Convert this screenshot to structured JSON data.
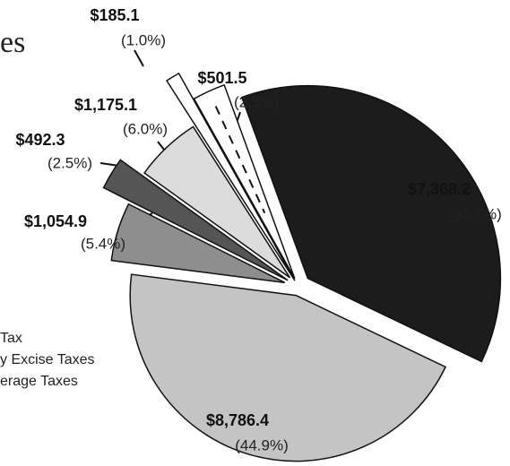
{
  "chart_data": {
    "type": "pie",
    "title": "es",
    "categories": null,
    "values": [
      7368.2,
      8786.4,
      1054.9,
      492.3,
      1175.1,
      185.1,
      501.5
    ],
    "value_labels": [
      "$7,368.2",
      "$8,786.4",
      "$1,054.9",
      "$492.3",
      "$1,175.1",
      "$185.1",
      "$501.5"
    ],
    "percentages": [
      37.7,
      44.9,
      5.4,
      2.5,
      6.0,
      1.0,
      2.5
    ],
    "percentage_labels": [
      "(37.7%)",
      "(44.9%)",
      "(5.4%)",
      "(2.5%)",
      "(6.0%)",
      "(1.0%)",
      "(2.5%)"
    ],
    "colors": [
      "#1c1c1c",
      "#c4c4c4",
      "#8e8e8e",
      "#555555",
      "#dcdcdc",
      "#ffffff",
      "#ffffff"
    ],
    "legend_fragments": [
      "Tax",
      "y Excise Taxes",
      "erage Taxes"
    ]
  }
}
